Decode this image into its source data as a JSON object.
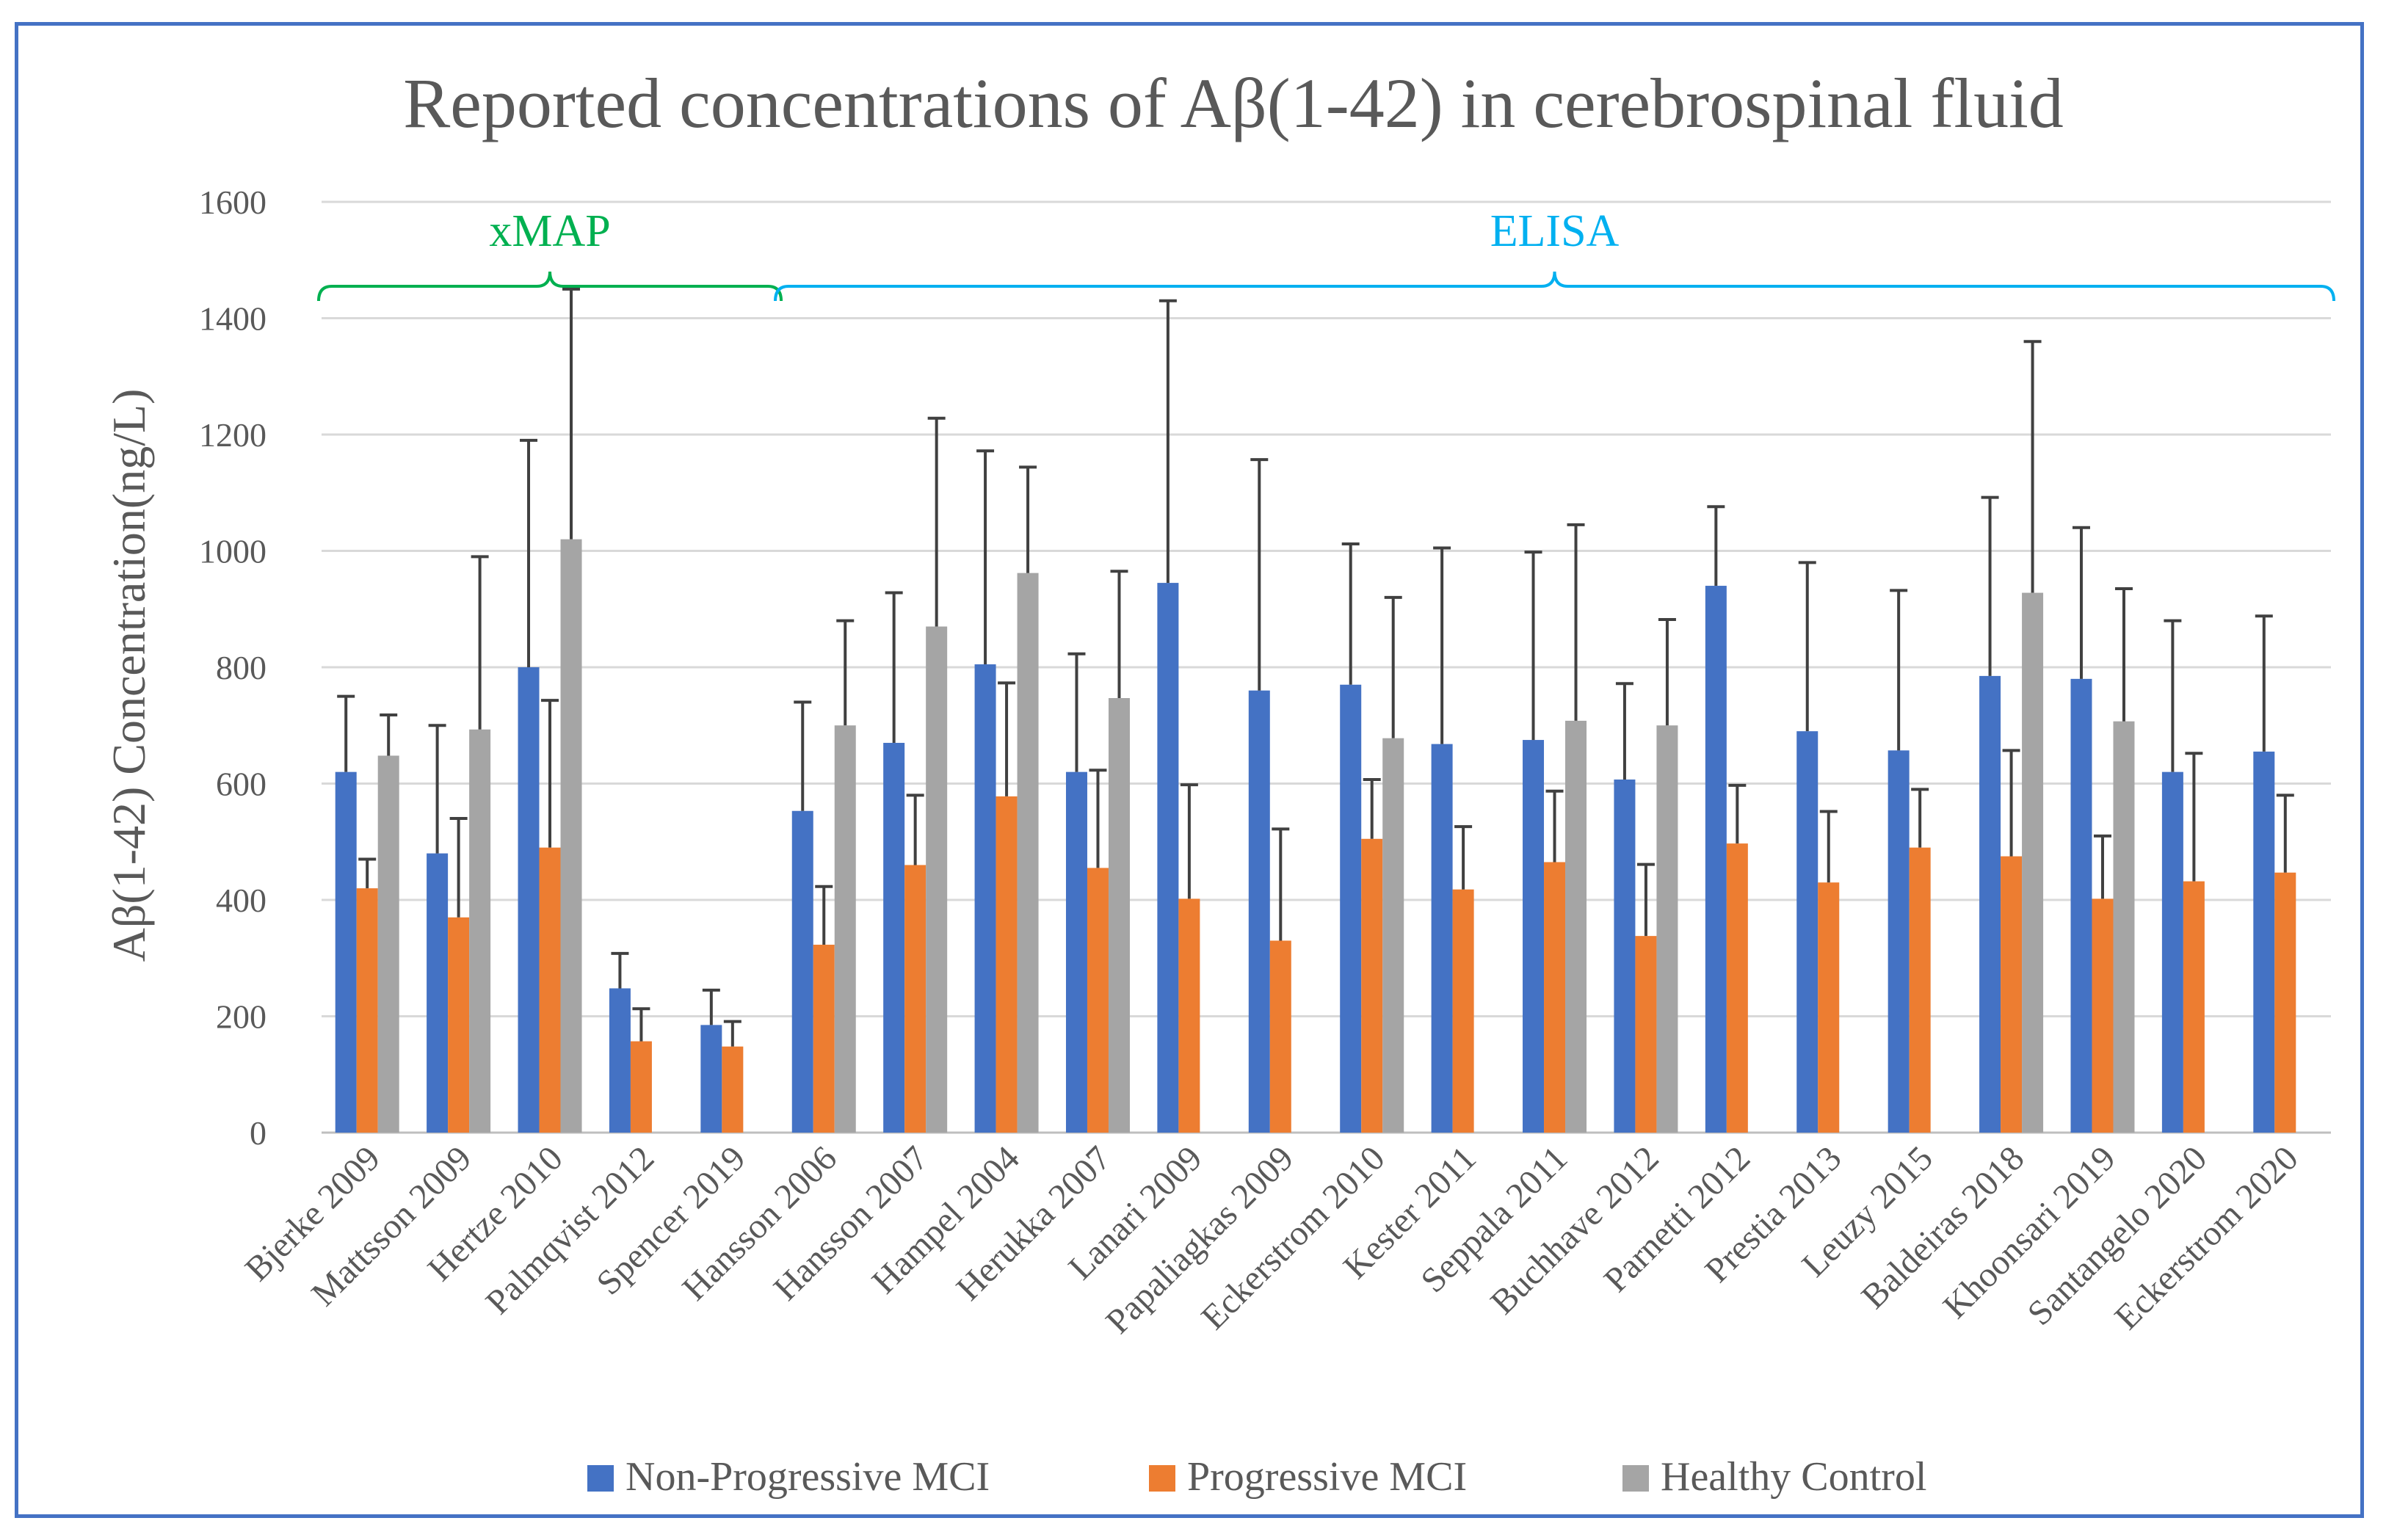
{
  "chart_data": {
    "type": "bar",
    "title": "Reported concentrations of Aβ(1-42) in cerebrospinal fluid",
    "ylabel": "Aβ(1-42) Concentration(ng/L)",
    "xlabel": "",
    "ylim": [
      0,
      1600
    ],
    "yticks": [
      0,
      200,
      400,
      600,
      800,
      1000,
      1200,
      1400,
      1600
    ],
    "grid": true,
    "legend_position": "bottom",
    "categories": [
      "Bjerke 2009",
      "Mattsson 2009",
      "Hertze 2010",
      "Palmqvist 2012",
      "Spencer 2019",
      "Hansson 2006",
      "Hansson 2007",
      "Hampel 2004",
      "Herukka 2007",
      "Lanari 2009",
      "Papaliagkas 2009",
      "Eckerstrom 2010",
      "Kester 2011",
      "Seppala 2011",
      "Buchhave 2012",
      "Parnetti 2012",
      "Prestia 2013",
      "Leuzy 2015",
      "Baldeiras 2018",
      "Khoonsari 2019",
      "Santangelo 2020",
      "Eckerstrom 2020"
    ],
    "series": [
      {
        "name": "Non-Progressive MCI",
        "color": "#4472c4",
        "values": [
          620,
          480,
          800,
          248,
          185,
          553,
          670,
          805,
          620,
          945,
          760,
          770,
          668,
          675,
          607,
          940,
          690,
          657,
          785,
          780,
          620,
          655
        ],
        "errors": [
          130,
          220,
          390,
          60,
          60,
          187,
          258,
          367,
          203,
          485,
          397,
          242,
          337,
          323,
          165,
          136,
          290,
          275,
          307,
          260,
          260,
          233
        ]
      },
      {
        "name": "Progressive MCI",
        "color": "#ed7d31",
        "values": [
          420,
          370,
          490,
          157,
          148,
          323,
          460,
          578,
          455,
          402,
          330,
          505,
          418,
          465,
          338,
          497,
          430,
          490,
          475,
          402,
          432,
          447
        ],
        "errors": [
          50,
          170,
          253,
          56,
          43,
          100,
          120,
          195,
          168,
          196,
          192,
          102,
          108,
          122,
          123,
          100,
          122,
          100,
          182,
          108,
          220,
          133
        ]
      },
      {
        "name": "Healthy Control",
        "color": "#a5a5a5",
        "values": [
          648,
          693,
          1020,
          null,
          null,
          700,
          870,
          962,
          747,
          null,
          null,
          678,
          null,
          708,
          700,
          null,
          null,
          null,
          928,
          707,
          null,
          null
        ],
        "errors": [
          70,
          297,
          430,
          null,
          null,
          180,
          358,
          182,
          218,
          null,
          null,
          242,
          null,
          337,
          182,
          null,
          null,
          null,
          432,
          228,
          null,
          null
        ]
      }
    ],
    "annotations": [
      {
        "label": "xMAP",
        "color": "#00b050",
        "from_category": 0,
        "to_category": 4
      },
      {
        "label": "ELISA",
        "color": "#00b0f0",
        "from_category": 5,
        "to_category": 21
      }
    ]
  }
}
